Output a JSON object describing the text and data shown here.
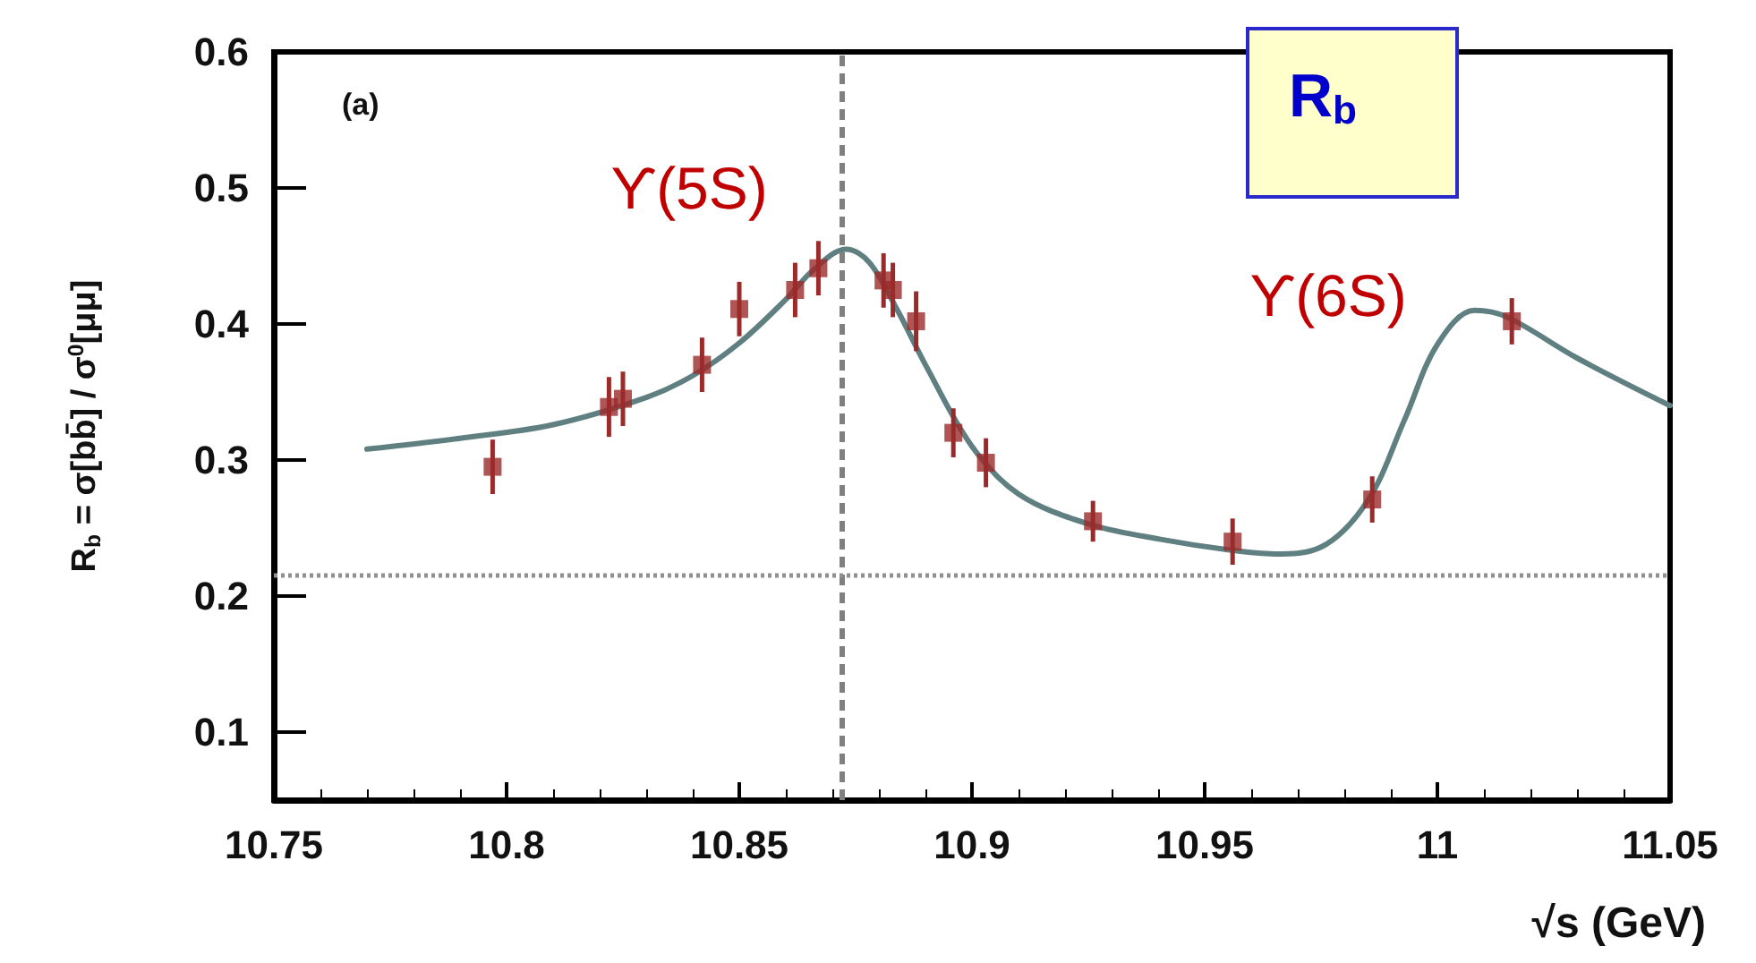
{
  "chart_data": {
    "type": "scatter",
    "xlabel": "√s (GeV)",
    "ylabel": "R$_{b}$ = σ[bb̄] / σ$^{0}$[μμ]",
    "xlim": [
      10.75,
      11.05
    ],
    "xticks": [
      10.75,
      10.8,
      10.85,
      10.9,
      10.95,
      11,
      11.05
    ],
    "ylim": [
      0.05,
      0.6
    ],
    "yticks": [
      0.1,
      0.2,
      0.3,
      0.4,
      0.5,
      0.6
    ],
    "grid": false,
    "series": [
      {
        "type": "line",
        "color": "#5f7f80",
        "marker": "none",
        "line_style": "solid",
        "x": [
          10.77,
          10.79,
          10.81,
          10.83,
          10.84,
          10.85,
          10.86,
          10.866,
          10.873,
          10.878,
          10.884,
          10.89,
          10.9,
          10.91,
          10.925,
          10.94,
          10.955,
          10.965,
          10.975,
          10.985,
          10.993,
          11.0,
          11.008,
          11.015,
          11.03,
          11.05
        ],
        "values": [
          0.308,
          0.316,
          0.326,
          0.346,
          0.362,
          0.386,
          0.418,
          0.44,
          0.455,
          0.445,
          0.41,
          0.37,
          0.31,
          0.275,
          0.253,
          0.242,
          0.234,
          0.231,
          0.236,
          0.27,
          0.33,
          0.385,
          0.41,
          0.405,
          0.375,
          0.34
        ]
      },
      {
        "color": "#9b2a2a",
        "marker": "square",
        "x": [
          10.797,
          10.822,
          10.825,
          10.842,
          10.85,
          10.862,
          10.867,
          10.881,
          10.883,
          10.888,
          10.896,
          10.903,
          10.926,
          10.956,
          10.986,
          11.016
        ],
        "values": [
          0.295,
          0.339,
          0.345,
          0.37,
          0.411,
          0.425,
          0.441,
          0.432,
          0.425,
          0.402,
          0.32,
          0.298,
          0.255,
          0.24,
          0.271,
          0.402
        ],
        "errors": [
          0.02,
          0.022,
          0.02,
          0.02,
          0.02,
          0.02,
          0.02,
          0.02,
          0.02,
          0.022,
          0.018,
          0.018,
          0.015,
          0.017,
          0.017,
          0.017
        ]
      }
    ],
    "ref_lines": [
      {
        "axis": "x",
        "value": 10.872,
        "color": "#808080",
        "line_style": "dashed"
      },
      {
        "axis": "y",
        "value": 0.215,
        "color": "#909090",
        "line_style": "dotted"
      }
    ],
    "annotations": [
      "(a)",
      "R$_{b}$",
      "ϒ(5S)",
      "ϒ(6S)"
    ]
  }
}
